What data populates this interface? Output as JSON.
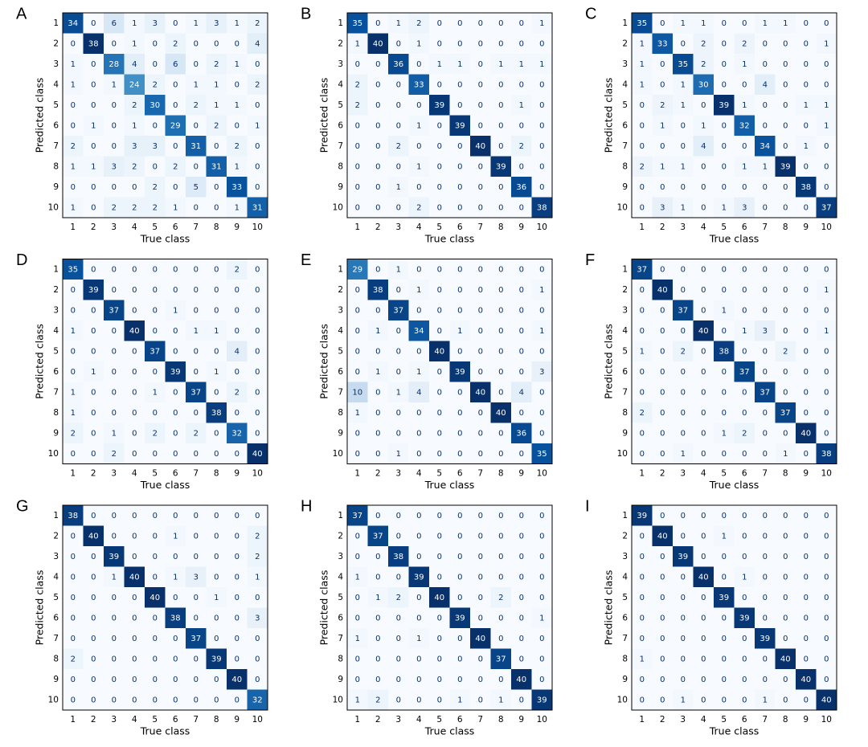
{
  "chart_data": [
    {
      "type": "heatmap",
      "label": "A",
      "xlabel": "True class",
      "ylabel": "Predicted class",
      "colormap": "Blues",
      "x_categories": [
        "1",
        "2",
        "3",
        "4",
        "5",
        "6",
        "7",
        "8",
        "9",
        "10"
      ],
      "y_categories": [
        "1",
        "2",
        "3",
        "4",
        "5",
        "6",
        "7",
        "8",
        "9",
        "10"
      ],
      "values": [
        [
          34,
          0,
          6,
          1,
          3,
          0,
          1,
          3,
          1,
          2
        ],
        [
          0,
          38,
          0,
          1,
          0,
          2,
          0,
          0,
          0,
          4
        ],
        [
          1,
          0,
          28,
          4,
          0,
          6,
          0,
          2,
          1,
          0
        ],
        [
          1,
          0,
          1,
          24,
          2,
          0,
          1,
          1,
          0,
          2
        ],
        [
          0,
          0,
          0,
          2,
          30,
          0,
          2,
          1,
          1,
          0
        ],
        [
          0,
          1,
          0,
          1,
          0,
          29,
          0,
          2,
          0,
          1
        ],
        [
          2,
          0,
          0,
          3,
          3,
          0,
          31,
          0,
          2,
          0
        ],
        [
          1,
          1,
          3,
          2,
          0,
          2,
          0,
          31,
          1,
          0
        ],
        [
          0,
          0,
          0,
          0,
          2,
          0,
          5,
          0,
          33,
          0
        ],
        [
          1,
          0,
          2,
          2,
          2,
          1,
          0,
          0,
          1,
          31
        ]
      ]
    },
    {
      "type": "heatmap",
      "label": "B",
      "xlabel": "True class",
      "ylabel": "Predicted class",
      "colormap": "Blues",
      "x_categories": [
        "1",
        "2",
        "3",
        "4",
        "5",
        "6",
        "7",
        "8",
        "9",
        "10"
      ],
      "y_categories": [
        "1",
        "2",
        "3",
        "4",
        "5",
        "6",
        "7",
        "8",
        "9",
        "10"
      ],
      "values": [
        [
          35,
          0,
          1,
          2,
          0,
          0,
          0,
          0,
          0,
          1
        ],
        [
          1,
          40,
          0,
          1,
          0,
          0,
          0,
          0,
          0,
          0
        ],
        [
          0,
          0,
          36,
          0,
          1,
          1,
          0,
          1,
          1,
          1
        ],
        [
          2,
          0,
          0,
          33,
          0,
          0,
          0,
          0,
          0,
          0
        ],
        [
          2,
          0,
          0,
          0,
          39,
          0,
          0,
          0,
          1,
          0
        ],
        [
          0,
          0,
          0,
          1,
          0,
          39,
          0,
          0,
          0,
          0
        ],
        [
          0,
          0,
          2,
          0,
          0,
          0,
          40,
          0,
          2,
          0
        ],
        [
          0,
          0,
          0,
          1,
          0,
          0,
          0,
          39,
          0,
          0
        ],
        [
          0,
          0,
          1,
          0,
          0,
          0,
          0,
          0,
          36,
          0
        ],
        [
          0,
          0,
          0,
          2,
          0,
          0,
          0,
          0,
          0,
          38
        ]
      ]
    },
    {
      "type": "heatmap",
      "label": "C",
      "xlabel": "True class",
      "ylabel": "Predicted class",
      "colormap": "Blues",
      "x_categories": [
        "1",
        "2",
        "3",
        "4",
        "5",
        "6",
        "7",
        "8",
        "9",
        "10"
      ],
      "y_categories": [
        "1",
        "2",
        "3",
        "4",
        "5",
        "6",
        "7",
        "8",
        "9",
        "10"
      ],
      "values": [
        [
          35,
          0,
          1,
          1,
          0,
          0,
          1,
          1,
          0,
          0
        ],
        [
          1,
          33,
          0,
          2,
          0,
          2,
          0,
          0,
          0,
          1
        ],
        [
          1,
          0,
          35,
          2,
          0,
          1,
          0,
          0,
          0,
          0
        ],
        [
          1,
          0,
          1,
          30,
          0,
          0,
          4,
          0,
          0,
          0
        ],
        [
          0,
          2,
          1,
          0,
          39,
          1,
          0,
          0,
          1,
          1
        ],
        [
          0,
          1,
          0,
          1,
          0,
          32,
          0,
          0,
          0,
          1
        ],
        [
          0,
          0,
          0,
          4,
          0,
          0,
          34,
          0,
          1,
          0
        ],
        [
          2,
          1,
          1,
          0,
          0,
          1,
          1,
          39,
          0,
          0
        ],
        [
          0,
          0,
          0,
          0,
          0,
          0,
          0,
          0,
          38,
          0
        ],
        [
          0,
          3,
          1,
          0,
          1,
          3,
          0,
          0,
          0,
          37
        ]
      ]
    },
    {
      "type": "heatmap",
      "label": "D",
      "xlabel": "True class",
      "ylabel": "Predicted class",
      "colormap": "Blues",
      "x_categories": [
        "1",
        "2",
        "3",
        "4",
        "5",
        "6",
        "7",
        "8",
        "9",
        "10"
      ],
      "y_categories": [
        "1",
        "2",
        "3",
        "4",
        "5",
        "6",
        "7",
        "8",
        "9",
        "10"
      ],
      "values": [
        [
          35,
          0,
          0,
          0,
          0,
          0,
          0,
          0,
          2,
          0
        ],
        [
          0,
          39,
          0,
          0,
          0,
          0,
          0,
          0,
          0,
          0
        ],
        [
          0,
          0,
          37,
          0,
          0,
          1,
          0,
          0,
          0,
          0
        ],
        [
          1,
          0,
          0,
          40,
          0,
          0,
          1,
          1,
          0,
          0
        ],
        [
          0,
          0,
          0,
          0,
          37,
          0,
          0,
          0,
          4,
          0
        ],
        [
          0,
          1,
          0,
          0,
          0,
          39,
          0,
          1,
          0,
          0
        ],
        [
          1,
          0,
          0,
          0,
          1,
          0,
          37,
          0,
          2,
          0
        ],
        [
          1,
          0,
          0,
          0,
          0,
          0,
          0,
          38,
          0,
          0
        ],
        [
          2,
          0,
          1,
          0,
          2,
          0,
          2,
          0,
          32,
          0
        ],
        [
          0,
          0,
          2,
          0,
          0,
          0,
          0,
          0,
          0,
          40
        ]
      ]
    },
    {
      "type": "heatmap",
      "label": "E",
      "xlabel": "True class",
      "ylabel": "Predicted class",
      "colormap": "Blues",
      "x_categories": [
        "1",
        "2",
        "3",
        "4",
        "5",
        "6",
        "7",
        "8",
        "9",
        "10"
      ],
      "y_categories": [
        "1",
        "2",
        "3",
        "4",
        "5",
        "6",
        "7",
        "8",
        "9",
        "10"
      ],
      "values": [
        [
          29,
          0,
          1,
          0,
          0,
          0,
          0,
          0,
          0,
          0
        ],
        [
          0,
          38,
          0,
          1,
          0,
          0,
          0,
          0,
          0,
          1
        ],
        [
          0,
          0,
          37,
          0,
          0,
          0,
          0,
          0,
          0,
          0
        ],
        [
          0,
          1,
          0,
          34,
          0,
          1,
          0,
          0,
          0,
          1
        ],
        [
          0,
          0,
          0,
          0,
          40,
          0,
          0,
          0,
          0,
          0
        ],
        [
          0,
          1,
          0,
          1,
          0,
          39,
          0,
          0,
          0,
          3
        ],
        [
          10,
          0,
          1,
          4,
          0,
          0,
          40,
          0,
          4,
          0
        ],
        [
          1,
          0,
          0,
          0,
          0,
          0,
          0,
          40,
          0,
          0
        ],
        [
          0,
          0,
          0,
          0,
          0,
          0,
          0,
          0,
          36,
          0
        ],
        [
          0,
          0,
          1,
          0,
          0,
          0,
          0,
          0,
          0,
          35
        ]
      ]
    },
    {
      "type": "heatmap",
      "label": "F",
      "xlabel": "True class",
      "ylabel": "Predicted class",
      "colormap": "Blues",
      "x_categories": [
        "1",
        "2",
        "3",
        "4",
        "5",
        "6",
        "7",
        "8",
        "9",
        "10"
      ],
      "y_categories": [
        "1",
        "2",
        "3",
        "4",
        "5",
        "6",
        "7",
        "8",
        "9",
        "10"
      ],
      "values": [
        [
          37,
          0,
          0,
          0,
          0,
          0,
          0,
          0,
          0,
          0
        ],
        [
          0,
          40,
          0,
          0,
          0,
          0,
          0,
          0,
          0,
          1
        ],
        [
          0,
          0,
          37,
          0,
          1,
          0,
          0,
          0,
          0,
          0
        ],
        [
          0,
          0,
          0,
          40,
          0,
          1,
          3,
          0,
          0,
          1
        ],
        [
          1,
          0,
          2,
          0,
          38,
          0,
          0,
          2,
          0,
          0
        ],
        [
          0,
          0,
          0,
          0,
          0,
          37,
          0,
          0,
          0,
          0
        ],
        [
          0,
          0,
          0,
          0,
          0,
          0,
          37,
          0,
          0,
          0
        ],
        [
          2,
          0,
          0,
          0,
          0,
          0,
          0,
          37,
          0,
          0
        ],
        [
          0,
          0,
          0,
          0,
          1,
          2,
          0,
          0,
          40,
          0
        ],
        [
          0,
          0,
          1,
          0,
          0,
          0,
          0,
          1,
          0,
          38
        ]
      ]
    },
    {
      "type": "heatmap",
      "label": "G",
      "xlabel": "True class",
      "ylabel": "Predicted class",
      "colormap": "Blues",
      "x_categories": [
        "1",
        "2",
        "3",
        "4",
        "5",
        "6",
        "7",
        "8",
        "9",
        "10"
      ],
      "y_categories": [
        "1",
        "2",
        "3",
        "4",
        "5",
        "6",
        "7",
        "8",
        "9",
        "10"
      ],
      "values": [
        [
          38,
          0,
          0,
          0,
          0,
          0,
          0,
          0,
          0,
          0
        ],
        [
          0,
          40,
          0,
          0,
          0,
          1,
          0,
          0,
          0,
          2
        ],
        [
          0,
          0,
          39,
          0,
          0,
          0,
          0,
          0,
          0,
          2
        ],
        [
          0,
          0,
          1,
          40,
          0,
          1,
          3,
          0,
          0,
          1
        ],
        [
          0,
          0,
          0,
          0,
          40,
          0,
          0,
          1,
          0,
          0
        ],
        [
          0,
          0,
          0,
          0,
          0,
          38,
          0,
          0,
          0,
          3
        ],
        [
          0,
          0,
          0,
          0,
          0,
          0,
          37,
          0,
          0,
          0
        ],
        [
          2,
          0,
          0,
          0,
          0,
          0,
          0,
          39,
          0,
          0
        ],
        [
          0,
          0,
          0,
          0,
          0,
          0,
          0,
          0,
          40,
          0
        ],
        [
          0,
          0,
          0,
          0,
          0,
          0,
          0,
          0,
          0,
          32
        ]
      ]
    },
    {
      "type": "heatmap",
      "label": "H",
      "xlabel": "True class",
      "ylabel": "Predicted class",
      "colormap": "Blues",
      "x_categories": [
        "1",
        "2",
        "3",
        "4",
        "5",
        "6",
        "7",
        "8",
        "9",
        "10"
      ],
      "y_categories": [
        "1",
        "2",
        "3",
        "4",
        "5",
        "6",
        "7",
        "8",
        "9",
        "10"
      ],
      "values": [
        [
          37,
          0,
          0,
          0,
          0,
          0,
          0,
          0,
          0,
          0
        ],
        [
          0,
          37,
          0,
          0,
          0,
          0,
          0,
          0,
          0,
          0
        ],
        [
          0,
          0,
          38,
          0,
          0,
          0,
          0,
          0,
          0,
          0
        ],
        [
          1,
          0,
          0,
          39,
          0,
          0,
          0,
          0,
          0,
          0
        ],
        [
          0,
          1,
          2,
          0,
          40,
          0,
          0,
          2,
          0,
          0
        ],
        [
          0,
          0,
          0,
          0,
          0,
          39,
          0,
          0,
          0,
          1
        ],
        [
          1,
          0,
          0,
          1,
          0,
          0,
          40,
          0,
          0,
          0
        ],
        [
          0,
          0,
          0,
          0,
          0,
          0,
          0,
          37,
          0,
          0
        ],
        [
          0,
          0,
          0,
          0,
          0,
          0,
          0,
          0,
          40,
          0
        ],
        [
          1,
          2,
          0,
          0,
          0,
          1,
          0,
          1,
          0,
          39
        ]
      ]
    },
    {
      "type": "heatmap",
      "label": "I",
      "xlabel": "True class",
      "ylabel": "Predicted class",
      "colormap": "Blues",
      "x_categories": [
        "1",
        "2",
        "3",
        "4",
        "5",
        "6",
        "7",
        "8",
        "9",
        "10"
      ],
      "y_categories": [
        "1",
        "2",
        "3",
        "4",
        "5",
        "6",
        "7",
        "8",
        "9",
        "10"
      ],
      "values": [
        [
          39,
          0,
          0,
          0,
          0,
          0,
          0,
          0,
          0,
          0
        ],
        [
          0,
          40,
          0,
          0,
          1,
          0,
          0,
          0,
          0,
          0
        ],
        [
          0,
          0,
          39,
          0,
          0,
          0,
          0,
          0,
          0,
          0
        ],
        [
          0,
          0,
          0,
          40,
          0,
          1,
          0,
          0,
          0,
          0
        ],
        [
          0,
          0,
          0,
          0,
          39,
          0,
          0,
          0,
          0,
          0
        ],
        [
          0,
          0,
          0,
          0,
          0,
          39,
          0,
          0,
          0,
          0
        ],
        [
          0,
          0,
          0,
          0,
          0,
          0,
          39,
          0,
          0,
          0
        ],
        [
          1,
          0,
          0,
          0,
          0,
          0,
          0,
          40,
          0,
          0
        ],
        [
          0,
          0,
          0,
          0,
          0,
          0,
          0,
          0,
          40,
          0
        ],
        [
          0,
          0,
          1,
          0,
          0,
          0,
          1,
          0,
          0,
          40
        ]
      ]
    }
  ]
}
